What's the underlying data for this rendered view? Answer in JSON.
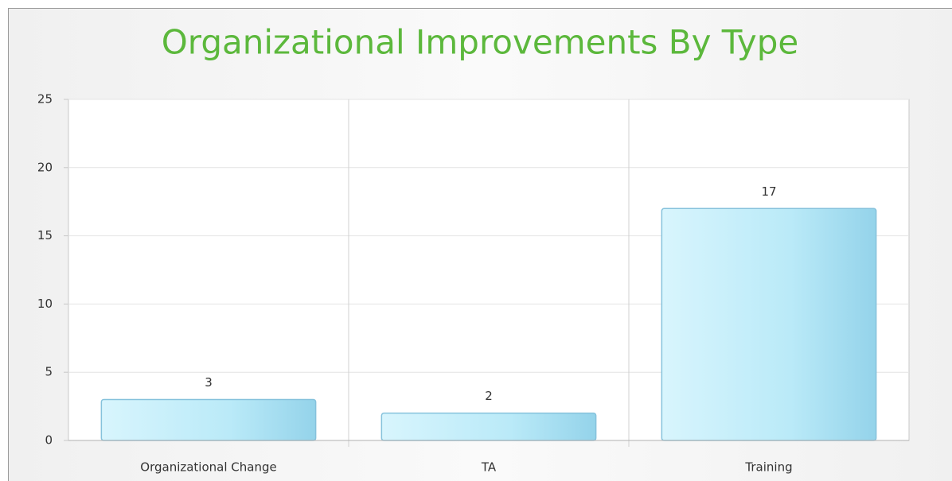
{
  "chart_data": {
    "type": "bar",
    "title": "Organizational Improvements By Type",
    "categories": [
      "Organizational Change",
      "TA",
      "Training"
    ],
    "values": [
      3,
      2,
      17
    ],
    "color": "#aee2f4",
    "ylim": [
      0,
      25
    ],
    "yticks": [
      0,
      5,
      10,
      15,
      20,
      25
    ],
    "grid": true
  }
}
